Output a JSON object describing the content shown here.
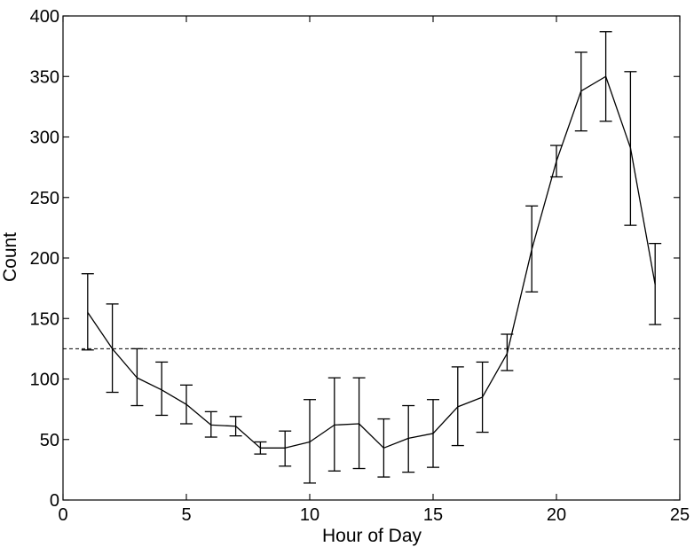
{
  "chart_data": {
    "type": "line",
    "title": "",
    "xlabel": "Hour of Day",
    "ylabel": "Count",
    "xlim": [
      0,
      25
    ],
    "ylim": [
      0,
      400
    ],
    "xticks": [
      0,
      5,
      10,
      15,
      20,
      25
    ],
    "yticks": [
      0,
      50,
      100,
      150,
      200,
      250,
      300,
      350,
      400
    ],
    "grid": false,
    "legend": "none",
    "series": [
      {
        "x": [
          1,
          2,
          3,
          4,
          5,
          6,
          7,
          8,
          9,
          10,
          11,
          12,
          13,
          14,
          15,
          16,
          17,
          18,
          19,
          20,
          21,
          22,
          23,
          24
        ],
        "y": [
          155,
          125,
          101,
          91,
          79,
          62,
          61,
          43,
          43,
          48,
          62,
          63,
          43,
          51,
          55,
          77,
          85,
          121,
          207,
          280,
          338,
          350,
          291,
          178
        ],
        "err_low": [
          124,
          89,
          78,
          70,
          63,
          52,
          53,
          38,
          28,
          14,
          24,
          26,
          19,
          23,
          27,
          45,
          56,
          107,
          172,
          267,
          305,
          313,
          227,
          145
        ],
        "err_high": [
          187,
          162,
          125,
          114,
          95,
          73,
          69,
          48,
          57,
          83,
          101,
          101,
          67,
          78,
          83,
          110,
          114,
          137,
          243,
          293,
          370,
          387,
          354,
          212
        ]
      }
    ],
    "reference_line": {
      "y": 125,
      "style": "dashed"
    },
    "color": "#000000"
  }
}
